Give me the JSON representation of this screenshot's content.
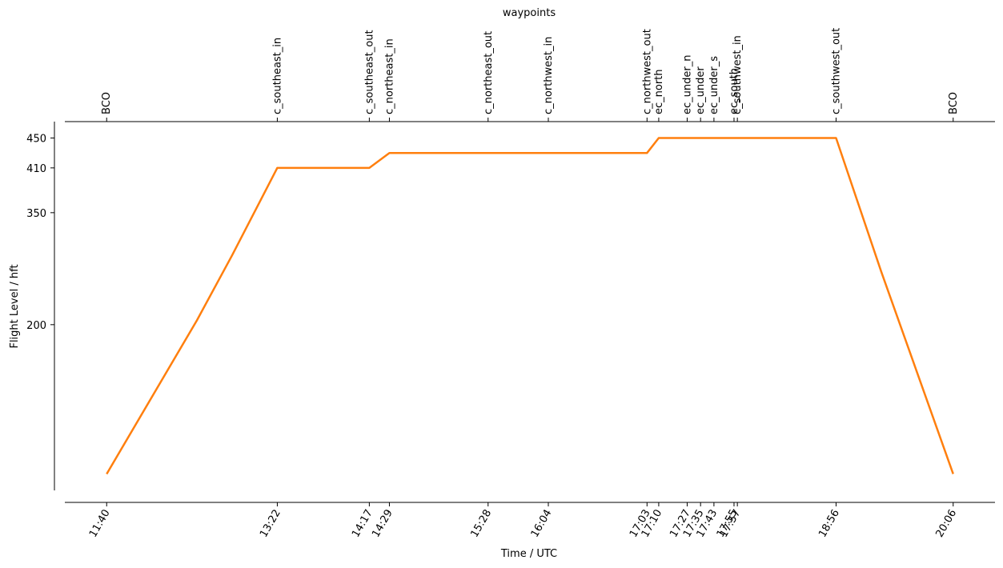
{
  "chart_data": {
    "type": "line",
    "xlabel": "Time / UTC",
    "ylabel": "Flight Level / hft",
    "x2label": "waypoints",
    "x": [
      700,
      754,
      775,
      802,
      857,
      869,
      1023,
      1030,
      1136,
      1163,
      1206
    ],
    "values": [
      0,
      206,
      293,
      410,
      410,
      430,
      430,
      450,
      450,
      271,
      0
    ],
    "color": "#ff7f0e",
    "xlim": [
      675,
      1231
    ],
    "ylim": [
      -22,
      472
    ],
    "yticks": [
      200,
      350,
      410,
      450
    ],
    "xticks": [
      {
        "value": 700,
        "label": "11:40"
      },
      {
        "value": 802,
        "label": "13:22"
      },
      {
        "value": 857,
        "label": "14:17"
      },
      {
        "value": 869,
        "label": "14:29"
      },
      {
        "value": 928,
        "label": "15:28"
      },
      {
        "value": 964,
        "label": "16:04"
      },
      {
        "value": 1023,
        "label": "17:03"
      },
      {
        "value": 1030,
        "label": "17:10"
      },
      {
        "value": 1047,
        "label": "17:27"
      },
      {
        "value": 1055,
        "label": "17:35"
      },
      {
        "value": 1063,
        "label": "17:43"
      },
      {
        "value": 1075,
        "label": "17:55"
      },
      {
        "value": 1077,
        "label": "17:57"
      },
      {
        "value": 1136,
        "label": "18:56"
      },
      {
        "value": 1206,
        "label": "20:06"
      }
    ],
    "x2ticks": [
      {
        "value": 700,
        "label": "BCO"
      },
      {
        "value": 802,
        "label": "c_southeast_in"
      },
      {
        "value": 857,
        "label": "c_southeast_out"
      },
      {
        "value": 869,
        "label": "c_northeast_in"
      },
      {
        "value": 928,
        "label": "c_northeast_out"
      },
      {
        "value": 964,
        "label": "c_northwest_in"
      },
      {
        "value": 1023,
        "label": "c_northwest_out"
      },
      {
        "value": 1030,
        "label": "ec_north"
      },
      {
        "value": 1047,
        "label": "ec_under_n"
      },
      {
        "value": 1055,
        "label": "ec_under"
      },
      {
        "value": 1063,
        "label": "ec_under_s"
      },
      {
        "value": 1075,
        "label": "ec_south"
      },
      {
        "value": 1077,
        "label": "c_southwest_in"
      },
      {
        "value": 1136,
        "label": "c_southwest_out"
      },
      {
        "value": 1206,
        "label": "BCO"
      }
    ]
  }
}
